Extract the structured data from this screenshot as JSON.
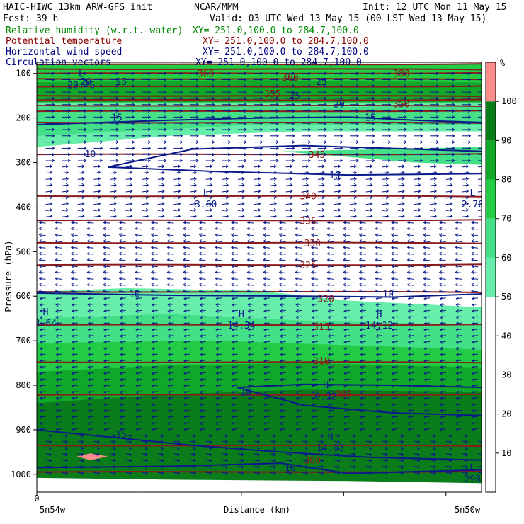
{
  "header": {
    "title_left": "HAIC-HIWC 13km ARW-GFS init",
    "org": "NCAR/MMM",
    "init": "Init: 12 UTC Mon 11 May 15",
    "fcst": "Fcst:   39 h",
    "valid": "Valid: 03 UTC Wed 13 May 15 (00 LST Wed 13 May 15)"
  },
  "fields": [
    {
      "name": "Relative humidity (w.r.t. water)",
      "xy": "XY= 251.0,100.0 to 284.7,100.0",
      "color": "#008800"
    },
    {
      "name": "Potential temperature",
      "xy": "XY= 251.0,100.0 to 284.7,100.0",
      "color": "#8b0000"
    },
    {
      "name": "Horizontal wind speed",
      "xy": "XY= 251.0,100.0 to 284.7,100.0",
      "color": "#000080"
    },
    {
      "name": "Circulation vectors",
      "xy": "XY= 251.0,100.0 to 284.7,100.0",
      "color": "#000080"
    }
  ],
  "chart_data": {
    "type": "cross-section",
    "xlabel": "Distance (km)",
    "ylabel": "Pressure (hPa)",
    "x_left_label": "5n54w",
    "x_right_label": "5n50w",
    "x_zero": "0",
    "y_ticks": [
      100,
      200,
      300,
      400,
      500,
      600,
      700,
      800,
      900,
      1000
    ],
    "ylim": [
      75,
      1040
    ],
    "colorbar": {
      "unit": "%",
      "ticks": [
        10,
        20,
        30,
        40,
        50,
        60,
        70,
        80,
        90,
        100
      ],
      "bins": [
        {
          "from": 0,
          "to": 50,
          "color": "#ffffff"
        },
        {
          "from": 50,
          "to": 60,
          "color": "#66eeaa"
        },
        {
          "from": 60,
          "to": 70,
          "color": "#44e088"
        },
        {
          "from": 70,
          "to": 80,
          "color": "#22cc44"
        },
        {
          "from": 80,
          "to": 90,
          "color": "#11a82a"
        },
        {
          "from": 90,
          "to": 100,
          "color": "#0a7d1a"
        },
        {
          "from": 100,
          "to": 110,
          "color": "#ff8c8c"
        }
      ]
    },
    "theta_labels": [
      {
        "value": "350",
        "p": 168,
        "x": 0.82
      },
      {
        "value": "345",
        "p": 282,
        "x": 0.63
      },
      {
        "value": "340",
        "p": 375,
        "x": 0.61
      },
      {
        "value": "335",
        "p": 430,
        "x": 0.61
      },
      {
        "value": "330",
        "p": 480,
        "x": 0.62
      },
      {
        "value": "325",
        "p": 530,
        "x": 0.61
      },
      {
        "value": "320",
        "p": 605,
        "x": 0.65
      },
      {
        "value": "315",
        "p": 668,
        "x": 0.64
      },
      {
        "value": "310",
        "p": 745,
        "x": 0.64
      },
      {
        "value": "305",
        "p": 820,
        "x": 0.69
      },
      {
        "value": "300",
        "p": 968,
        "x": 0.62
      },
      {
        "value": "355",
        "p": 145,
        "x": 0.53
      },
      {
        "value": "360",
        "p": 108,
        "x": 0.57
      },
      {
        "value": "380",
        "p": 100,
        "x": 0.82
      },
      {
        "value": "360",
        "p": 100,
        "x": 0.38
      }
    ],
    "theta_line_p": [
      80,
      90,
      100,
      112,
      130,
      150,
      160,
      172,
      185,
      210,
      282,
      375,
      430,
      480,
      530,
      590,
      665,
      748,
      822,
      935,
      995
    ],
    "wind_labels": [
      {
        "value": "15",
        "p": 198,
        "x": 0.18
      },
      {
        "value": "15",
        "p": 198,
        "x": 0.75
      },
      {
        "value": "10",
        "p": 280,
        "x": 0.12
      },
      {
        "value": "10",
        "p": 328,
        "x": 0.67
      },
      {
        "value": "10",
        "p": 595,
        "x": 0.22
      },
      {
        "value": "10",
        "p": 595,
        "x": 0.79
      },
      {
        "value": "10",
        "p": 815,
        "x": 0.47
      },
      {
        "value": "15",
        "p": 910,
        "x": 0.19
      },
      {
        "value": "10",
        "p": 985,
        "x": 0.57
      },
      {
        "value": "20",
        "p": 118,
        "x": 0.11
      },
      {
        "value": "25",
        "p": 118,
        "x": 0.64
      },
      {
        "value": "25",
        "p": 150,
        "x": 0.58
      },
      {
        "value": "20",
        "p": 168,
        "x": 0.68
      },
      {
        "value": "25",
        "p": 118,
        "x": 0.19
      }
    ],
    "extrema": [
      {
        "type": "L",
        "value": "3.60",
        "p": 388,
        "x": 0.38
      },
      {
        "type": "L",
        "value": "2.70",
        "p": 388,
        "x": 0.98
      },
      {
        "type": "H",
        "value": "3.64",
        "p": 655,
        "x": 0.02
      },
      {
        "type": "H",
        "value": "14.34",
        "p": 660,
        "x": 0.46
      },
      {
        "type": "H",
        "value": "14.12",
        "p": 660,
        "x": 0.77
      },
      {
        "type": "H",
        "value": "9.22",
        "p": 820,
        "x": 0.65
      },
      {
        "type": "H",
        "value": "14.03",
        "p": 935,
        "x": 0.66
      },
      {
        "type": "L",
        "value": "29.76",
        "p": 120,
        "x": 0.1
      },
      {
        "type": "L",
        "value": "298",
        "p": 1005,
        "x": 0.98
      }
    ]
  }
}
